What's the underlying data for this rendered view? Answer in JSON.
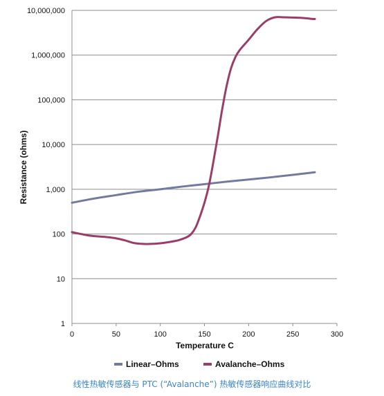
{
  "chart_data": {
    "type": "line",
    "ylabel": "Resistance (ohms)",
    "xlabel": "Temperature C",
    "xlim": [
      0,
      300
    ],
    "ylim": [
      1,
      10000000
    ],
    "yscale": "log",
    "x_ticks": [
      "0",
      "50",
      "100",
      "150",
      "200",
      "250",
      "300"
    ],
    "x_tick_values": [
      0,
      50,
      100,
      150,
      200,
      250,
      300
    ],
    "y_ticks": [
      "1",
      "10",
      "100",
      "1,000",
      "10,000",
      "100,000",
      "1,000,000",
      "10,000,000"
    ],
    "y_tick_values": [
      1,
      10,
      100,
      1000,
      10000,
      100000,
      1000000,
      10000000
    ],
    "grid": "horizontal",
    "legend_position": "bottom",
    "series": [
      {
        "name": "Linear–Ohms",
        "color": "#737aa0",
        "x": [
          0,
          25,
          50,
          75,
          100,
          125,
          150,
          175,
          200,
          225,
          250,
          275
        ],
        "y": [
          500,
          620,
          740,
          880,
          1000,
          1150,
          1300,
          1480,
          1650,
          1850,
          2100,
          2400
        ]
      },
      {
        "name": "Avalanche–Ohms",
        "color": "#9a3d6a",
        "x": [
          0,
          10,
          20,
          30,
          40,
          50,
          60,
          70,
          80,
          90,
          100,
          110,
          120,
          130,
          135,
          140,
          145,
          150,
          155,
          160,
          165,
          170,
          175,
          180,
          185,
          190,
          200,
          210,
          220,
          230,
          240,
          250,
          260,
          270,
          275
        ],
        "y": [
          110,
          100,
          92,
          88,
          85,
          80,
          72,
          63,
          60,
          60,
          62,
          66,
          72,
          85,
          100,
          140,
          250,
          500,
          1200,
          4000,
          15000,
          60000,
          200000,
          500000,
          900000,
          1300000,
          2200000,
          3800000,
          5800000,
          7000000,
          7000000,
          6900000,
          6800000,
          6500000,
          6400000
        ]
      }
    ]
  },
  "caption": "线性热敏传感器与 PTC (“Avalanche”) 热敏传感器响应曲线对比"
}
